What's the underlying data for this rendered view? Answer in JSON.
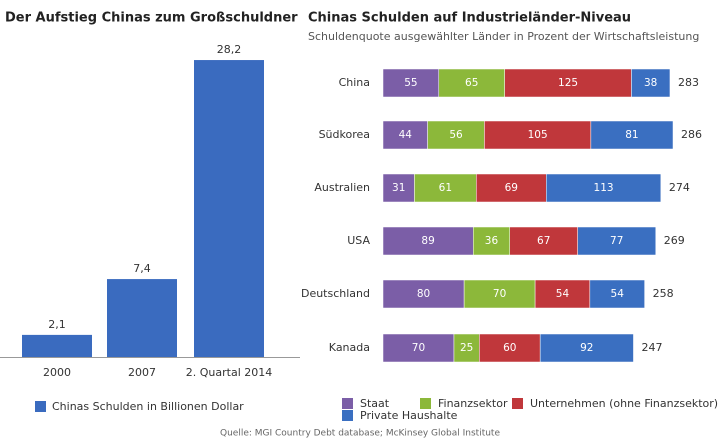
{
  "chart_data": [
    {
      "type": "bar",
      "title": "Der Aufstieg Chinas zum Großschuldner",
      "categories": [
        "2000",
        "2007",
        "2. Quartal 2014"
      ],
      "series": [
        {
          "name": "Chinas Schulden in Billionen Dollar",
          "color": "#3a6bbf",
          "values": [
            2.1,
            7.4,
            28.2
          ],
          "value_labels": [
            "2,1",
            "7,4",
            "28,2"
          ]
        }
      ]
    },
    {
      "type": "stacked-hbar",
      "title": "Chinas Schulden auf Industrieländer-Niveau",
      "subtitle": "Schuldenquote ausgewählter Länder in Prozent der Wirtschaftsleistung",
      "categories": [
        "China",
        "Südkorea",
        "Australien",
        "USA",
        "Deutschland",
        "Kanada"
      ],
      "series": [
        {
          "name": "Staat",
          "color": "#7b5ea7",
          "values": [
            55,
            44,
            31,
            89,
            80,
            70
          ]
        },
        {
          "name": "Finanzsektor",
          "color": "#8cb83a",
          "values": [
            65,
            56,
            61,
            36,
            70,
            25
          ]
        },
        {
          "name": "Unternehmen (ohne Finanzsektor)",
          "color": "#c0373b",
          "values": [
            125,
            105,
            69,
            67,
            54,
            60
          ]
        },
        {
          "name": "Private Haushalte",
          "color": "#3a6fc1",
          "values": [
            38,
            81,
            113,
            77,
            54,
            92
          ]
        }
      ],
      "totals": [
        283,
        286,
        274,
        269,
        258,
        247
      ]
    }
  ],
  "source": "Quelle: MGI Country Debt database; McKinsey Global Institute"
}
